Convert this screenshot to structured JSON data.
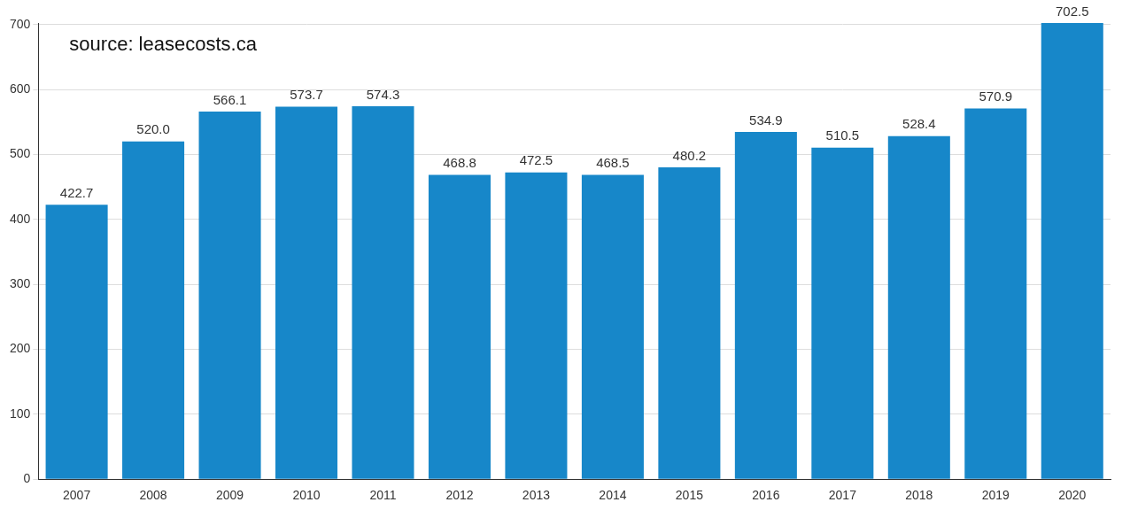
{
  "chart_data": {
    "type": "bar",
    "annotation": "source: leasecosts.ca",
    "categories": [
      "2007",
      "2008",
      "2009",
      "2010",
      "2011",
      "2012",
      "2013",
      "2014",
      "2015",
      "2016",
      "2017",
      "2018",
      "2019",
      "2020"
    ],
    "values": [
      422.7,
      520.0,
      566.1,
      573.7,
      574.3,
      468.8,
      472.5,
      468.5,
      480.2,
      534.9,
      510.5,
      528.4,
      570.9,
      702.5
    ],
    "value_labels": [
      "422.7",
      "520.0",
      "566.1",
      "573.7",
      "574.3",
      "468.8",
      "472.5",
      "468.5",
      "480.2",
      "534.9",
      "510.5",
      "528.4",
      "570.9",
      "702.5"
    ],
    "color": "#1787c9",
    "ylim": [
      0,
      702.5
    ],
    "yticks": [
      0,
      100,
      200,
      300,
      400,
      500,
      600,
      700
    ],
    "grid": true,
    "data_labels": true
  }
}
